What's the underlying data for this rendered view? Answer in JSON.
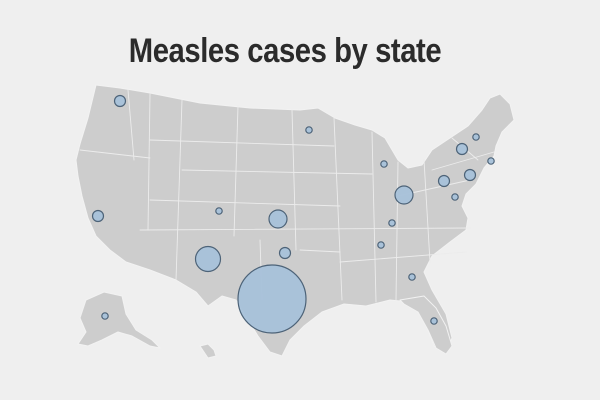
{
  "title": "Measles cases by state",
  "colors": {
    "background": "#efefef",
    "land": "#cdcdcd",
    "state_border": "#f2f2f2",
    "bubble_fill": "#a7c1d9",
    "bubble_stroke": "#4d6378",
    "title_text": "#2b2b2b"
  },
  "map_data": {
    "type": "proportional-symbol-map",
    "region": "United States",
    "symbol": "circle",
    "bubbles": [
      {
        "state": "Washington",
        "size": "small"
      },
      {
        "state": "California",
        "size": "small"
      },
      {
        "state": "Colorado",
        "size": "tiny"
      },
      {
        "state": "Alaska",
        "size": "tiny"
      },
      {
        "state": "New Mexico",
        "size": "medium"
      },
      {
        "state": "Texas",
        "size": "very-large"
      },
      {
        "state": "Kansas",
        "size": "medium-small"
      },
      {
        "state": "Oklahoma",
        "size": "small"
      },
      {
        "state": "Minnesota",
        "size": "tiny"
      },
      {
        "state": "Michigan",
        "size": "tiny"
      },
      {
        "state": "Ohio",
        "size": "medium-small"
      },
      {
        "state": "Kentucky",
        "size": "tiny"
      },
      {
        "state": "Tennessee",
        "size": "tiny"
      },
      {
        "state": "Georgia",
        "size": "tiny"
      },
      {
        "state": "Florida",
        "size": "tiny"
      },
      {
        "state": "Pennsylvania",
        "size": "small"
      },
      {
        "state": "New York",
        "size": "small"
      },
      {
        "state": "New Jersey",
        "size": "small"
      },
      {
        "state": "Maryland",
        "size": "tiny"
      },
      {
        "state": "Vermont",
        "size": "tiny"
      },
      {
        "state": "Rhode Island",
        "size": "tiny"
      }
    ]
  }
}
